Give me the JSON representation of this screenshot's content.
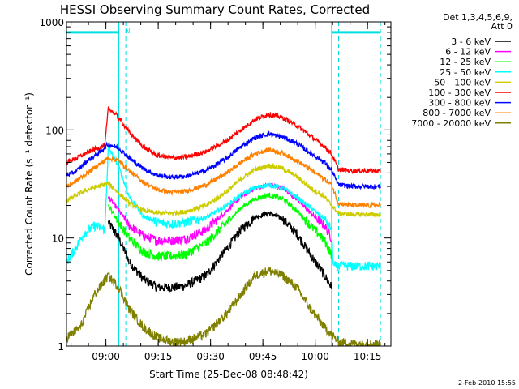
{
  "chart_data": {
    "type": "line",
    "title": "HESSI Observing Summary Count Rates, Corrected",
    "xlabel": "Start Time (25-Dec-08 08:48:42)",
    "ylabel": "Corrected Count Rate (s⁻¹ detector⁻¹)",
    "y_scale": "log",
    "ylim": [
      1,
      1000
    ],
    "y_ticks": [
      1,
      10,
      100,
      1000
    ],
    "y_tick_labels": [
      "1",
      "10",
      "100",
      "1000"
    ],
    "x_units": "minutes after 08:48:42",
    "xlim": [
      0,
      93
    ],
    "x_ticks": [
      11.3,
      26.3,
      41.3,
      56.3,
      71.3,
      86.3
    ],
    "x_tick_labels": [
      "09:00",
      "09:15",
      "09:30",
      "09:45",
      "10:00",
      "10:15"
    ],
    "grid": false,
    "legend_placement": "outside right",
    "legend_header": [
      "Det 1,3,4,5,6,9,",
      "Att 0"
    ],
    "markers": {
      "night_lines": [
        17,
        78
      ],
      "saa_lines": [
        15,
        76
      ],
      "end_line": 90,
      "bars": [
        {
          "x_start": 0,
          "x_end": 15,
          "y": 800,
          "label": "N"
        },
        {
          "x_start": 76,
          "x_end": 90,
          "y": 800,
          "label": ""
        }
      ]
    },
    "series": [
      {
        "name": "3 - 6 keV",
        "color": "#000000",
        "x": [
          12,
          15,
          18,
          22,
          26,
          30,
          34,
          40,
          46,
          50,
          54,
          58,
          62,
          66,
          70,
          74,
          76
        ],
        "y": [
          14,
          10,
          6,
          4.2,
          3.5,
          3.5,
          3.6,
          4.5,
          8,
          12,
          15.5,
          17,
          15,
          11,
          7,
          4.5,
          3.5
        ]
      },
      {
        "name": "6 - 12 keV",
        "color": "#ff00ff",
        "x": [
          12,
          15,
          18,
          22,
          26,
          30,
          34,
          40,
          46,
          50,
          54,
          58,
          62,
          66,
          70,
          74,
          76
        ],
        "y": [
          24,
          18,
          13,
          10.5,
          9.5,
          9.5,
          9.8,
          12,
          18,
          24,
          29,
          31,
          29,
          23,
          17,
          13,
          10
        ]
      },
      {
        "name": "12 - 25 keV",
        "color": "#00ff00",
        "x": [
          12,
          15,
          18,
          22,
          26,
          30,
          34,
          40,
          46,
          50,
          54,
          58,
          62,
          66,
          70,
          74,
          76
        ],
        "y": [
          20,
          14,
          10,
          7.5,
          6.8,
          6.8,
          7,
          9,
          14,
          19,
          23,
          25,
          23,
          18,
          13,
          9.5,
          7
        ]
      },
      {
        "name": "25 - 50 keV",
        "color": "#00ffff",
        "x": [
          0,
          2,
          5,
          8,
          11,
          12,
          13,
          15,
          18,
          22,
          26,
          30,
          34,
          40,
          46,
          50,
          54,
          58,
          62,
          66,
          70,
          74,
          76,
          76.5,
          80,
          84,
          88,
          90
        ],
        "y": [
          6,
          7.5,
          11,
          13,
          12,
          70,
          60,
          45,
          24,
          16,
          14,
          13.5,
          14,
          15.5,
          20,
          25,
          29,
          31,
          29,
          24,
          19,
          15,
          12,
          5.5,
          5.5,
          5.5,
          5.5,
          5.5
        ]
      },
      {
        "name": "50 - 100 keV",
        "color": "#cccc00",
        "x": [
          0,
          3,
          6,
          9,
          12,
          15,
          18,
          22,
          26,
          30,
          34,
          40,
          46,
          50,
          54,
          58,
          62,
          66,
          70,
          74,
          76,
          78,
          82,
          86,
          90
        ],
        "y": [
          22,
          25,
          28,
          30,
          32,
          26,
          21,
          18,
          17,
          17,
          17.5,
          20,
          27,
          35,
          43,
          47,
          44,
          37,
          29,
          24,
          20,
          17,
          16.5,
          16.5,
          16.5
        ]
      },
      {
        "name": "100 - 300 keV",
        "color": "#ff0000",
        "x": [
          0,
          3,
          6,
          9,
          11,
          12,
          13,
          15,
          18,
          22,
          26,
          30,
          34,
          40,
          46,
          50,
          54,
          58,
          62,
          66,
          70,
          74,
          76,
          78,
          82,
          86,
          90
        ],
        "y": [
          50,
          55,
          62,
          68,
          72,
          160,
          150,
          130,
          95,
          70,
          58,
          55,
          56,
          63,
          80,
          100,
          125,
          140,
          130,
          110,
          88,
          70,
          60,
          43,
          42,
          42,
          42
        ]
      },
      {
        "name": "300 - 800 keV",
        "color": "#0000ff",
        "x": [
          0,
          3,
          6,
          9,
          12,
          15,
          18,
          22,
          26,
          30,
          34,
          40,
          46,
          50,
          54,
          58,
          62,
          66,
          70,
          74,
          76,
          78,
          82,
          86,
          90
        ],
        "y": [
          38,
          42,
          52,
          60,
          74,
          68,
          55,
          44,
          38,
          36.5,
          37,
          42,
          55,
          70,
          85,
          92,
          86,
          75,
          61,
          50,
          42,
          31,
          30,
          30,
          30
        ]
      },
      {
        "name": "800 - 7000 keV",
        "color": "#ff8000",
        "x": [
          0,
          3,
          6,
          9,
          12,
          15,
          18,
          22,
          26,
          30,
          34,
          40,
          46,
          50,
          54,
          58,
          62,
          66,
          70,
          74,
          76,
          78,
          82,
          86,
          90
        ],
        "y": [
          30,
          34,
          40,
          47,
          55,
          52,
          42,
          33,
          28,
          26.5,
          27,
          31,
          40,
          50,
          60,
          66,
          61,
          52,
          43,
          35,
          31,
          21,
          20,
          20,
          20
        ]
      },
      {
        "name": "7000 - 20000 keV",
        "color": "#808000",
        "x": [
          0,
          4,
          8,
          12,
          15,
          18,
          22,
          26,
          30,
          34,
          40,
          46,
          50,
          54,
          58,
          62,
          66,
          70,
          74,
          78,
          82,
          86,
          90
        ],
        "y": [
          1.2,
          1.5,
          3,
          4.5,
          3.5,
          2.2,
          1.5,
          1.2,
          1.1,
          1.1,
          1.3,
          2,
          3,
          4.5,
          5,
          4.5,
          3.5,
          2.2,
          1.5,
          1.1,
          1.05,
          1.05,
          1.05
        ]
      }
    ]
  },
  "footer": {
    "timestamp": "2-Feb-2010 15:55"
  }
}
